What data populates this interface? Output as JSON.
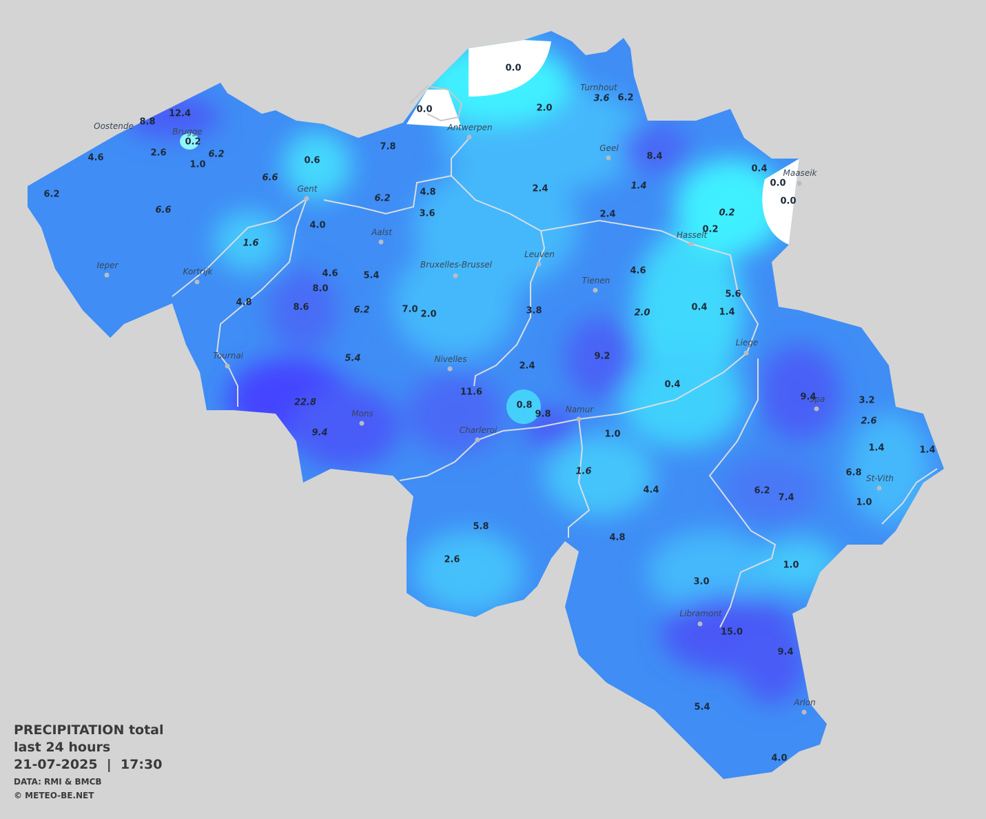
{
  "title": {
    "lines": [
      "PRECIPITATION total",
      "last 24 hours",
      "21-07-2025  |  17:30"
    ]
  },
  "credits": [
    "DATA: RMI & BMCB",
    "© METEO-BE.NET"
  ],
  "cities": [
    "Oostende",
    "Brugge",
    "Antwerpen",
    "Turnhout",
    "Geel",
    "Maaseik",
    "Gent",
    "Hasselt",
    "Aalst",
    "Leuven",
    "Bruxelles-Brussel",
    "Ieper",
    "Kortrijk",
    "Tienen",
    "Liege",
    "Tournai",
    "Nivelles",
    "Spa",
    "Namur",
    "Mons",
    "Charleroi",
    "St-Vith",
    "Libramont",
    "Arlon"
  ],
  "stations": [
    {
      "value": "0.0",
      "italic": false
    },
    {
      "value": "0.0",
      "italic": false
    },
    {
      "value": "2.0",
      "italic": false
    },
    {
      "value": "3.6",
      "italic": true
    },
    {
      "value": "6.2",
      "italic": false
    },
    {
      "value": "12.4",
      "italic": false
    },
    {
      "value": "8.8",
      "italic": false
    },
    {
      "value": "0.2",
      "italic": false
    },
    {
      "value": "2.6",
      "italic": false
    },
    {
      "value": "1.0",
      "italic": false
    },
    {
      "value": "6.2",
      "italic": true
    },
    {
      "value": "4.6",
      "italic": false
    },
    {
      "value": "7.8",
      "italic": false
    },
    {
      "value": "0.6",
      "italic": false
    },
    {
      "value": "8.4",
      "italic": false
    },
    {
      "value": "0.4",
      "italic": false
    },
    {
      "value": "0.0",
      "italic": false
    },
    {
      "value": "0.0",
      "italic": false
    },
    {
      "value": "6.6",
      "italic": true
    },
    {
      "value": "2.4",
      "italic": false
    },
    {
      "value": "1.4",
      "italic": true
    },
    {
      "value": "6.2",
      "italic": false
    },
    {
      "value": "4.8",
      "italic": false
    },
    {
      "value": "6.2",
      "italic": true
    },
    {
      "value": "3.6",
      "italic": false
    },
    {
      "value": "6.6",
      "italic": true
    },
    {
      "value": "4.0",
      "italic": false
    },
    {
      "value": "2.4",
      "italic": false
    },
    {
      "value": "0.2",
      "italic": true
    },
    {
      "value": "0.2",
      "italic": false
    },
    {
      "value": "1.6",
      "italic": true
    },
    {
      "value": "4.6",
      "italic": false
    },
    {
      "value": "4.6",
      "italic": false
    },
    {
      "value": "5.4",
      "italic": false
    },
    {
      "value": "8.0",
      "italic": false
    },
    {
      "value": "5.6",
      "italic": false
    },
    {
      "value": "4.8",
      "italic": false
    },
    {
      "value": "8.6",
      "italic": false
    },
    {
      "value": "6.2",
      "italic": true
    },
    {
      "value": "7.0",
      "italic": false
    },
    {
      "value": "2.0",
      "italic": false
    },
    {
      "value": "3.8",
      "italic": false
    },
    {
      "value": "0.4",
      "italic": false
    },
    {
      "value": "1.4",
      "italic": false
    },
    {
      "value": "2.0",
      "italic": true
    },
    {
      "value": "5.4",
      "italic": true
    },
    {
      "value": "9.2",
      "italic": false
    },
    {
      "value": "2.4",
      "italic": false
    },
    {
      "value": "0.4",
      "italic": false
    },
    {
      "value": "11.6",
      "italic": false
    },
    {
      "value": "9.4",
      "italic": false
    },
    {
      "value": "3.2",
      "italic": false
    },
    {
      "value": "0.8",
      "italic": false
    },
    {
      "value": "9.8",
      "italic": false
    },
    {
      "value": "22.8",
      "italic": true
    },
    {
      "value": "2.6",
      "italic": true
    },
    {
      "value": "9.4",
      "italic": true
    },
    {
      "value": "1.0",
      "italic": false
    },
    {
      "value": "1.4",
      "italic": false
    },
    {
      "value": "1.4",
      "italic": false
    },
    {
      "value": "1.6",
      "italic": true
    },
    {
      "value": "6.8",
      "italic": false
    },
    {
      "value": "4.4",
      "italic": false
    },
    {
      "value": "6.2",
      "italic": false
    },
    {
      "value": "7.4",
      "italic": false
    },
    {
      "value": "1.0",
      "italic": false
    },
    {
      "value": "5.8",
      "italic": false
    },
    {
      "value": "4.8",
      "italic": false
    },
    {
      "value": "2.6",
      "italic": false
    },
    {
      "value": "1.0",
      "italic": false
    },
    {
      "value": "3.0",
      "italic": false
    },
    {
      "value": "15.0",
      "italic": false
    },
    {
      "value": "9.4",
      "italic": false
    },
    {
      "value": "5.4",
      "italic": false
    },
    {
      "value": "4.0",
      "italic": false
    }
  ]
}
